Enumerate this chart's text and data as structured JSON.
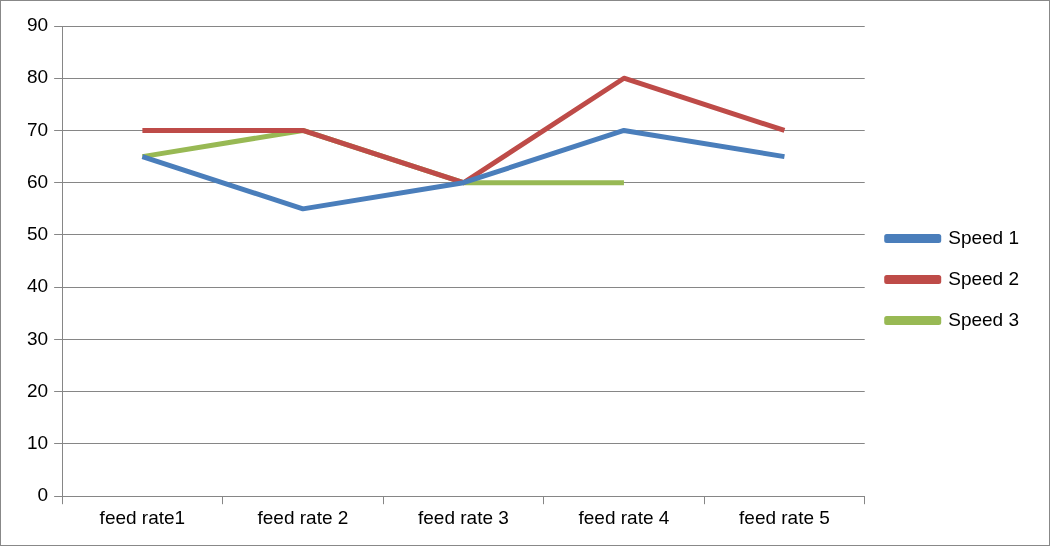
{
  "chart_data": {
    "type": "line",
    "categories": [
      "feed rate1",
      "feed rate 2",
      "feed rate 3",
      "feed rate 4",
      "feed rate 5"
    ],
    "series": [
      {
        "name": "Speed 1",
        "color": "#4a7ebb",
        "values": [
          65,
          55,
          60,
          70,
          65
        ]
      },
      {
        "name": "Speed 2",
        "color": "#be4b48",
        "values": [
          70,
          70,
          60,
          80,
          70
        ]
      },
      {
        "name": "Speed 3",
        "color": "#98b954",
        "values": [
          65,
          70,
          60,
          60,
          null
        ]
      }
    ],
    "ylim": [
      0,
      90
    ],
    "yticks": [
      0,
      10,
      20,
      30,
      40,
      50,
      60,
      70,
      80,
      90
    ],
    "grid": "y",
    "legend": "right",
    "marker": "none",
    "line_style": "solid"
  }
}
